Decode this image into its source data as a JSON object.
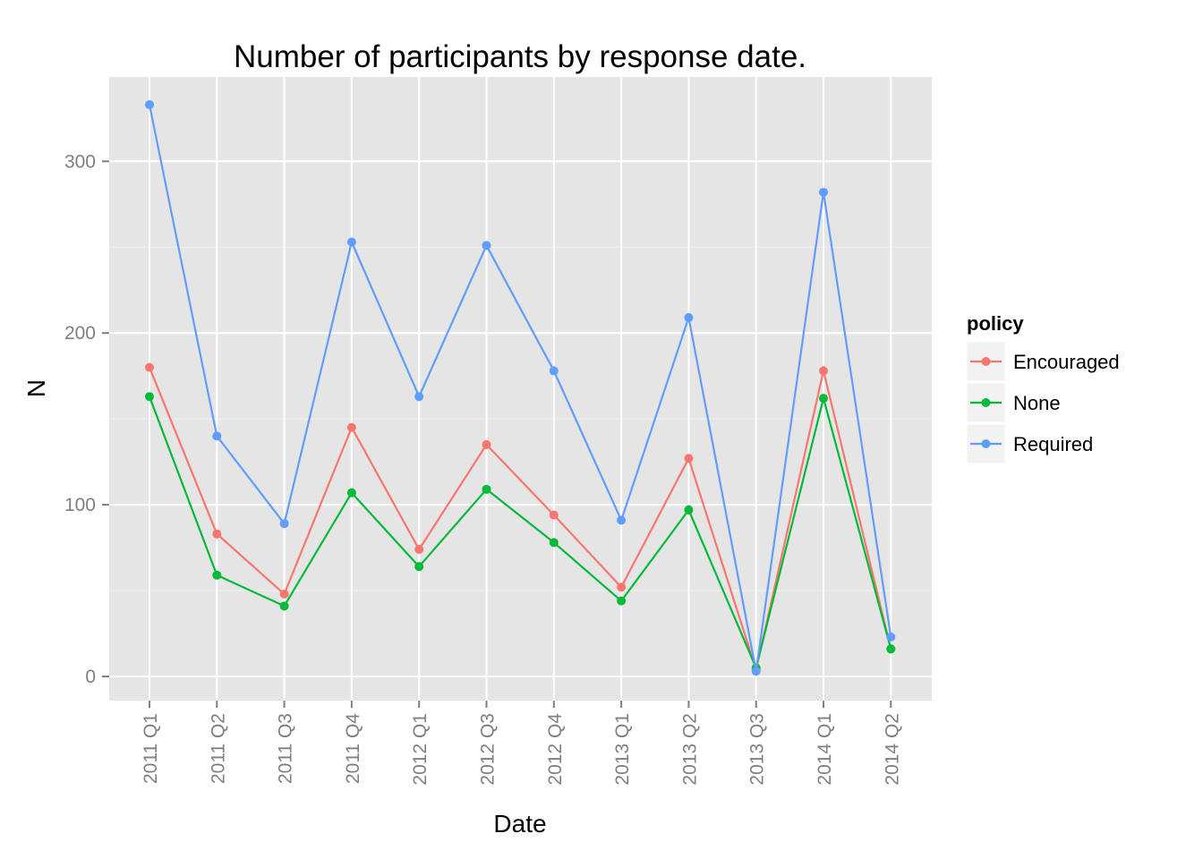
{
  "chart_data": {
    "type": "line",
    "title": "Number of participants by response date.",
    "xlabel": "Date",
    "ylabel": "N",
    "categories": [
      "2011 Q1",
      "2011 Q2",
      "2011 Q3",
      "2011 Q4",
      "2012 Q1",
      "2012 Q3",
      "2012 Q4",
      "2013 Q1",
      "2013 Q2",
      "2013 Q3",
      "2014 Q1",
      "2014 Q2"
    ],
    "y_ticks": [
      0,
      100,
      200,
      300
    ],
    "ylim": [
      -14,
      349
    ],
    "grid": true,
    "legend": {
      "title": "policy",
      "position": "right"
    },
    "series": [
      {
        "name": "Encouraged",
        "color": "#F8766D",
        "values": [
          180,
          83,
          48,
          145,
          74,
          135,
          94,
          52,
          127,
          4,
          178,
          16
        ]
      },
      {
        "name": "None",
        "color": "#00BA38",
        "values": [
          163,
          59,
          41,
          107,
          64,
          109,
          78,
          44,
          97,
          5,
          162,
          16
        ]
      },
      {
        "name": "Required",
        "color": "#619CFF",
        "values": [
          333,
          140,
          89,
          253,
          163,
          251,
          178,
          91,
          209,
          3,
          282,
          23
        ]
      }
    ]
  }
}
